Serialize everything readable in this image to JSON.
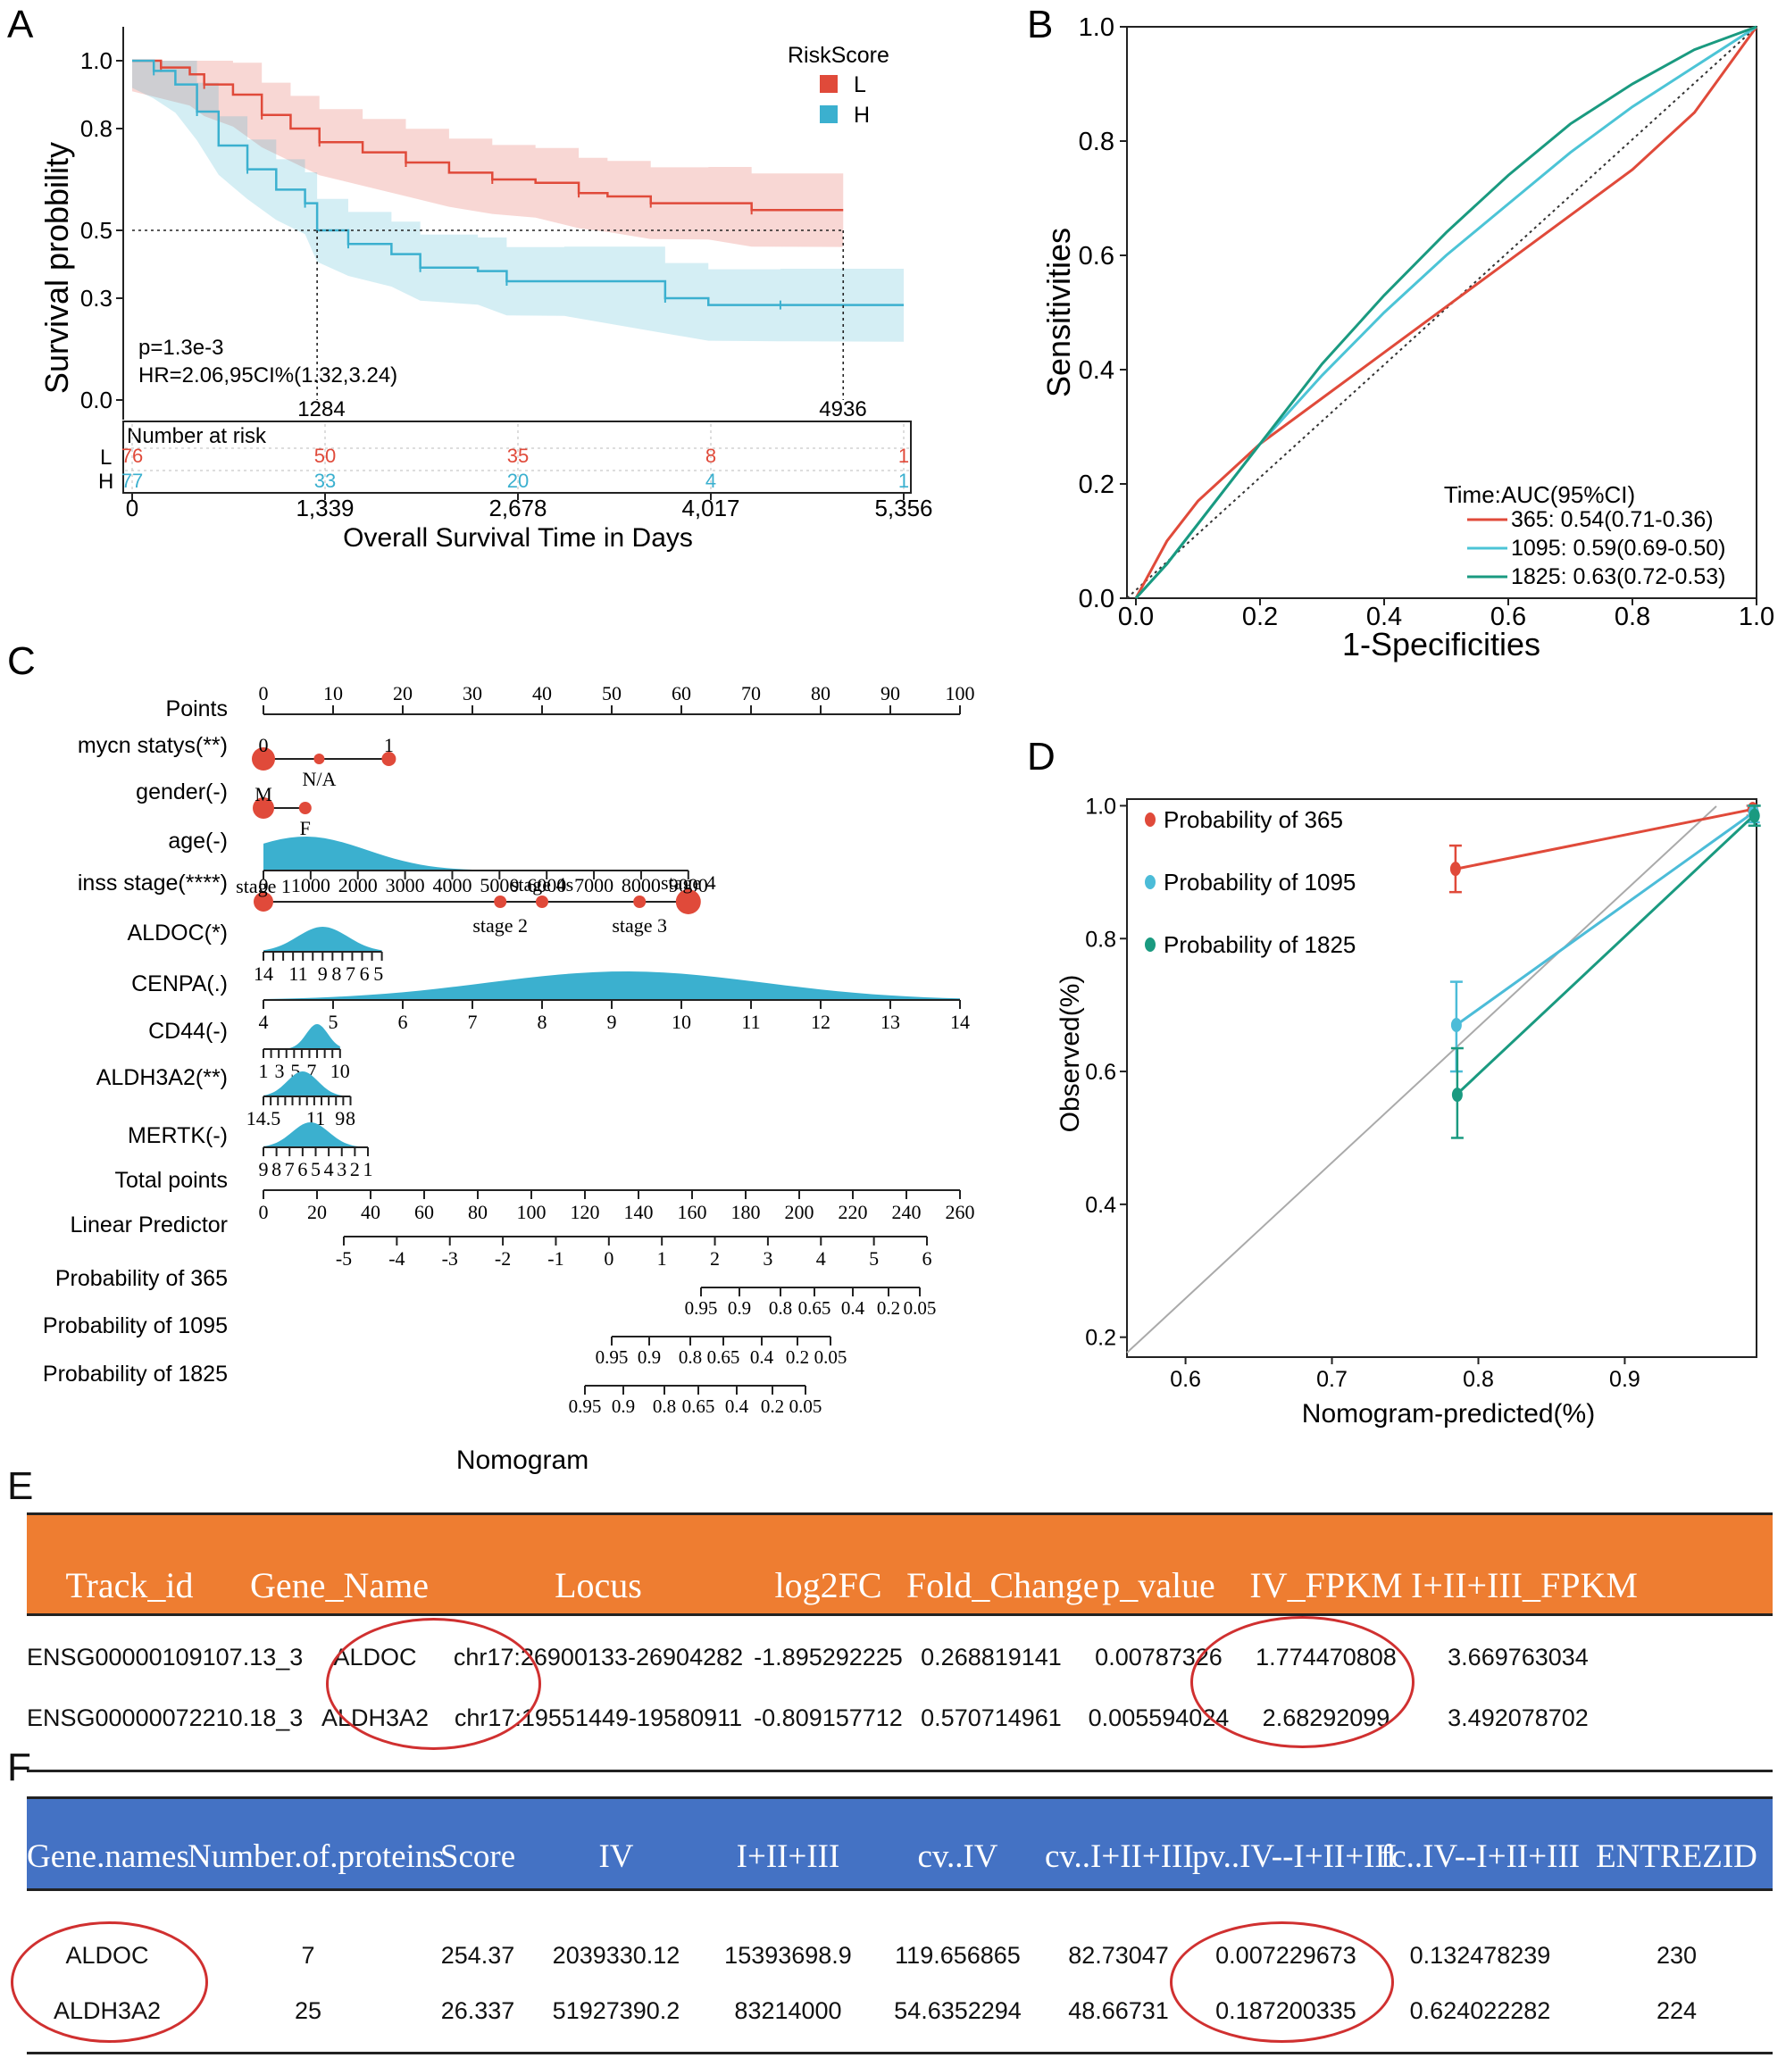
{
  "panel_labels": {
    "a": "A",
    "b": "B",
    "c": "C",
    "d": "D",
    "e": "E",
    "f": "F"
  },
  "chart_data": [
    {
      "id": "km",
      "type": "line",
      "title": "",
      "ylabel": "Survival probbility",
      "xlabel": "Overall Survival Time in Days",
      "xlim": [
        0,
        5356
      ],
      "ylim": [
        0,
        1
      ],
      "y_ticks": [
        "1.0",
        "0.8",
        "0.5",
        "0.3",
        "0.0"
      ],
      "x_ticks": [
        "0",
        "1,339",
        "2,678",
        "4,017",
        "5,356"
      ],
      "legend": {
        "title": "RiskScore",
        "items": [
          "L",
          "H"
        ]
      },
      "colors": {
        "L": "#e04a3a",
        "H": "#3bb0cf"
      },
      "series": [
        {
          "name": "L",
          "x": [
            0,
            200,
            400,
            500,
            700,
            900,
            1100,
            1300,
            1600,
            1900,
            2200,
            2500,
            2800,
            3100,
            3300,
            3600,
            4000,
            4300,
            4936
          ],
          "y": [
            1.0,
            0.98,
            0.96,
            0.93,
            0.9,
            0.84,
            0.8,
            0.76,
            0.73,
            0.7,
            0.67,
            0.65,
            0.64,
            0.61,
            0.6,
            0.58,
            0.58,
            0.56,
            0.56
          ]
        },
        {
          "name": "H",
          "x": [
            0,
            150,
            300,
            450,
            600,
            800,
            1000,
            1200,
            1284,
            1500,
            1800,
            2000,
            2400,
            2600,
            3000,
            3700,
            4000,
            4500,
            5356
          ],
          "y": [
            1.0,
            0.97,
            0.93,
            0.85,
            0.75,
            0.68,
            0.62,
            0.58,
            0.5,
            0.46,
            0.43,
            0.39,
            0.38,
            0.35,
            0.35,
            0.3,
            0.28,
            0.28,
            0.28
          ]
        }
      ],
      "annotations": {
        "median_L": "4936",
        "median_H": "1284",
        "p": "p=1.3e-3",
        "hr": "HR=2.06,95CI%(1.32,3.24)",
        "median_line_y": 0.5
      },
      "risk_table": {
        "title": "Number at risk",
        "row_labels": [
          "L",
          "H"
        ],
        "L": [
          "76",
          "50",
          "35",
          "8",
          "1"
        ],
        "H": [
          "77",
          "33",
          "20",
          "4",
          "1"
        ]
      }
    },
    {
      "id": "roc",
      "type": "line",
      "xlabel": "1-Specificities",
      "ylabel": "Sensitivities",
      "xlim": [
        0,
        1
      ],
      "ylim": [
        0,
        1
      ],
      "x_ticks": [
        "0.0",
        "0.2",
        "0.4",
        "0.6",
        "0.8",
        "1.0"
      ],
      "y_ticks": [
        "0.0",
        "0.2",
        "0.4",
        "0.6",
        "0.8",
        "1.0"
      ],
      "legend": {
        "title": "Time:AUC(95%CI)",
        "items": [
          "365: 0.54(0.71-0.36)",
          "1095: 0.59(0.69-0.50)",
          "1825: 0.63(0.72-0.53)"
        ]
      },
      "series": [
        {
          "name": "365",
          "color": "#e04a3a",
          "x": [
            0,
            0.05,
            0.1,
            0.2,
            0.3,
            0.4,
            0.5,
            0.6,
            0.7,
            0.8,
            0.9,
            1.0
          ],
          "y": [
            0,
            0.1,
            0.17,
            0.27,
            0.35,
            0.43,
            0.51,
            0.59,
            0.67,
            0.75,
            0.85,
            1.0
          ]
        },
        {
          "name": "1095",
          "color": "#4cc4d6",
          "x": [
            0,
            0.05,
            0.1,
            0.2,
            0.3,
            0.4,
            0.5,
            0.6,
            0.7,
            0.8,
            0.9,
            1.0
          ],
          "y": [
            0,
            0.06,
            0.13,
            0.27,
            0.39,
            0.5,
            0.6,
            0.69,
            0.78,
            0.86,
            0.93,
            1.0
          ]
        },
        {
          "name": "1825",
          "color": "#1a9a80",
          "x": [
            0,
            0.05,
            0.1,
            0.2,
            0.3,
            0.4,
            0.5,
            0.6,
            0.7,
            0.8,
            0.9,
            1.0
          ],
          "y": [
            0,
            0.06,
            0.13,
            0.27,
            0.41,
            0.53,
            0.64,
            0.74,
            0.83,
            0.9,
            0.96,
            1.0
          ]
        }
      ]
    },
    {
      "id": "nomogram",
      "type": "table",
      "title": "Nomogram",
      "rows": [
        {
          "label": "Points",
          "ticks": [
            "0",
            "10",
            "20",
            "30",
            "40",
            "50",
            "60",
            "70",
            "80",
            "90",
            "100"
          ]
        },
        {
          "label": "mycn statys(**)",
          "ticks": [
            "0",
            "N/A",
            "1"
          ]
        },
        {
          "label": "gender(-)",
          "ticks": [
            "M",
            "F"
          ]
        },
        {
          "label": "age(-)",
          "ticks": [
            "0",
            "1000",
            "2000",
            "3000",
            "4000",
            "5000",
            "6000",
            "7000",
            "8000",
            "9000"
          ]
        },
        {
          "label": "inss stage(****)",
          "ticks": [
            "stage 1",
            "stage 2",
            "stage 4s",
            "stage 3",
            "stage 4"
          ]
        },
        {
          "label": "ALDOC(*)",
          "ticks": [
            "14",
            "11",
            "9",
            "8",
            "7",
            "6",
            "5"
          ]
        },
        {
          "label": "CENPA(.)",
          "ticks": [
            "4",
            "5",
            "6",
            "7",
            "8",
            "9",
            "10",
            "11",
            "12",
            "13",
            "14"
          ]
        },
        {
          "label": "CD44(-)",
          "ticks": [
            "1",
            "3",
            "5",
            "7",
            "10"
          ]
        },
        {
          "label": "ALDH3A2(**)",
          "ticks": [
            "14.5",
            "11",
            "9",
            "8"
          ]
        },
        {
          "label": "MERTK(-)",
          "ticks": [
            "9",
            "8",
            "7",
            "6",
            "5",
            "4",
            "3",
            "2",
            "1"
          ]
        },
        {
          "label": "Total points",
          "ticks": [
            "0",
            "20",
            "40",
            "60",
            "80",
            "100",
            "120",
            "140",
            "160",
            "180",
            "200",
            "220",
            "240",
            "260"
          ]
        },
        {
          "label": "Linear Predictor",
          "ticks": [
            "-5",
            "-4",
            "-3",
            "-2",
            "-1",
            "0",
            "1",
            "2",
            "3",
            "4",
            "5",
            "6"
          ]
        },
        {
          "label": "Probability of 365",
          "ticks": [
            "0.95",
            "0.9",
            "0.8",
            "0.65",
            "0.4",
            "0.2",
            "0.05"
          ]
        },
        {
          "label": "Probability of 1095",
          "ticks": [
            "0.95",
            "0.9",
            "0.8",
            "0.65",
            "0.4",
            "0.2",
            "0.05"
          ]
        },
        {
          "label": "Probability of 1825",
          "ticks": [
            "0.95",
            "0.9",
            "0.8",
            "0.65",
            "0.4",
            "0.2",
            "0.05"
          ]
        }
      ]
    },
    {
      "id": "calibration",
      "type": "line",
      "xlabel": "Nomogram-predicted(%)",
      "ylabel": "Observed(%)",
      "xlim": [
        0.56,
        0.99
      ],
      "ylim": [
        0.17,
        1.01
      ],
      "x_ticks": [
        "0.6",
        "0.7",
        "0.8",
        "0.9"
      ],
      "y_ticks": [
        "0.2",
        "0.4",
        "0.6",
        "0.8",
        "1.0"
      ],
      "legend": {
        "items": [
          "Probability of 365",
          "Probability of 1095",
          "Probability of 1825"
        ]
      },
      "series": [
        {
          "name": "Probability of 365",
          "color": "#e04a3a",
          "x": [
            0.785,
            0.988
          ],
          "y": [
            0.905,
            0.995
          ],
          "err_low": [
            0.87,
            0.985
          ],
          "err_high": [
            0.94,
            1.0
          ]
        },
        {
          "name": "Probability of 1095",
          "color": "#4cbcd8",
          "x": [
            0.785,
            0.988
          ],
          "y": [
            0.67,
            0.99
          ],
          "err_low": [
            0.6,
            0.975
          ],
          "err_high": [
            0.735,
            1.0
          ]
        },
        {
          "name": "Probability of 1825",
          "color": "#1a9a80",
          "x": [
            0.785,
            0.988
          ],
          "y": [
            0.565,
            0.985
          ],
          "err_low": [
            0.5,
            0.97
          ],
          "err_high": [
            0.635,
            1.0
          ]
        }
      ]
    }
  ],
  "table_e": {
    "headers": [
      "Track_id",
      "Gene_Name",
      "Locus",
      "log2FC",
      "Fold_Change",
      "p_value",
      "IV_FPKM",
      "I+II+III_FPKM"
    ],
    "rows": [
      [
        "ENSG00000109107.13_3",
        "ALDOC",
        "chr17:26900133-26904282",
        "-1.895292225",
        "0.268819141",
        "0.00787326",
        "1.774470808",
        "3.669763034"
      ],
      [
        "ENSG00000072210.18_3",
        "ALDH3A2",
        "chr17:19551449-19580911",
        "-0.809157712",
        "0.570714961",
        "0.005594024",
        "2.68292099",
        "3.492078702"
      ]
    ]
  },
  "table_f": {
    "headers": [
      "Gene.names",
      "Number.of.proteins",
      "Score",
      "IV",
      "I+II+III",
      "cv..IV",
      "cv..I+II+III",
      "pv..IV--I+II+III",
      "fc..IV--I+II+III",
      "ENTREZID"
    ],
    "rows": [
      [
        "ALDOC",
        "7",
        "254.37",
        "2039330.12",
        "15393698.9",
        "119.656865",
        "82.73047",
        "0.007229673",
        "0.132478239",
        "230"
      ],
      [
        "ALDH3A2",
        "25",
        "26.337",
        "51927390.2",
        "83214000",
        "54.6352294",
        "48.66731",
        "0.187200335",
        "0.624022282",
        "224"
      ]
    ]
  },
  "colors": {
    "red": "#e04a3a",
    "blue": "#3bb0cf",
    "teal": "#1a9a80",
    "orange_header": "#ee7d31",
    "blue_header": "#4472c4",
    "circle": "#d03030"
  }
}
